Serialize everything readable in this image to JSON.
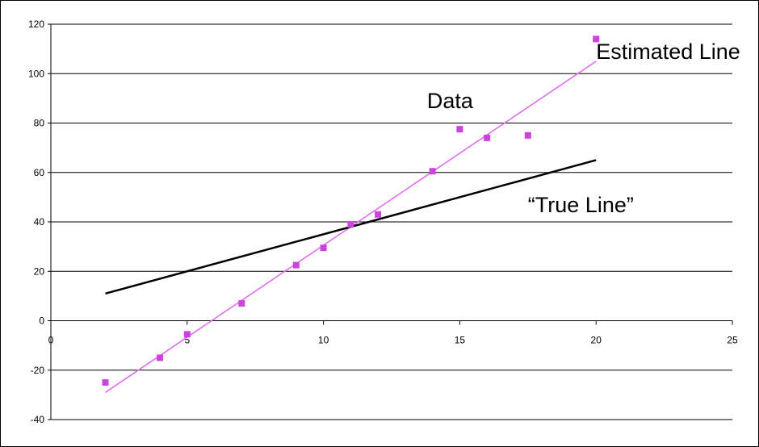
{
  "chart_data": {
    "type": "scatter",
    "title": "",
    "xlabel": "",
    "ylabel": "",
    "xlim": [
      0,
      25
    ],
    "ylim": [
      -40,
      120
    ],
    "x_ticks": [
      0,
      5,
      10,
      15,
      20,
      25
    ],
    "y_ticks": [
      -40,
      -20,
      0,
      20,
      40,
      60,
      80,
      100,
      120
    ],
    "x_tick_labels": [
      "0",
      "5",
      "10",
      "15",
      "20",
      "25"
    ],
    "y_tick_labels": [
      "-40",
      "-20",
      "0",
      "20",
      "40",
      "60",
      "80",
      "100",
      "120"
    ],
    "grid": "horizontal",
    "legend": "none",
    "series": [
      {
        "kind": "points",
        "color": "#cc44dd",
        "points": [
          [
            2,
            -25
          ],
          [
            4,
            -15
          ],
          [
            5,
            -5.5
          ],
          [
            7,
            7
          ],
          [
            9,
            22.5
          ],
          [
            10,
            29.5
          ],
          [
            11,
            39
          ],
          [
            12,
            43
          ],
          [
            14,
            60.5
          ],
          [
            15,
            77.5
          ],
          [
            16,
            74
          ],
          [
            17.5,
            75
          ],
          [
            20,
            114
          ]
        ]
      },
      {
        "kind": "line",
        "color": "#e070f0",
        "points": [
          [
            2,
            -29
          ],
          [
            20,
            105
          ]
        ]
      },
      {
        "kind": "line",
        "color": "#000000",
        "points": [
          [
            2,
            11
          ],
          [
            20,
            65
          ]
        ]
      }
    ],
    "annotations": [
      {
        "text": "Estimated Line",
        "x": 20,
        "y": 106
      },
      {
        "text": "Data",
        "x": 13.8,
        "y": 86
      },
      {
        "text": "“True Line”",
        "x": 17.5,
        "y": 44
      }
    ]
  }
}
